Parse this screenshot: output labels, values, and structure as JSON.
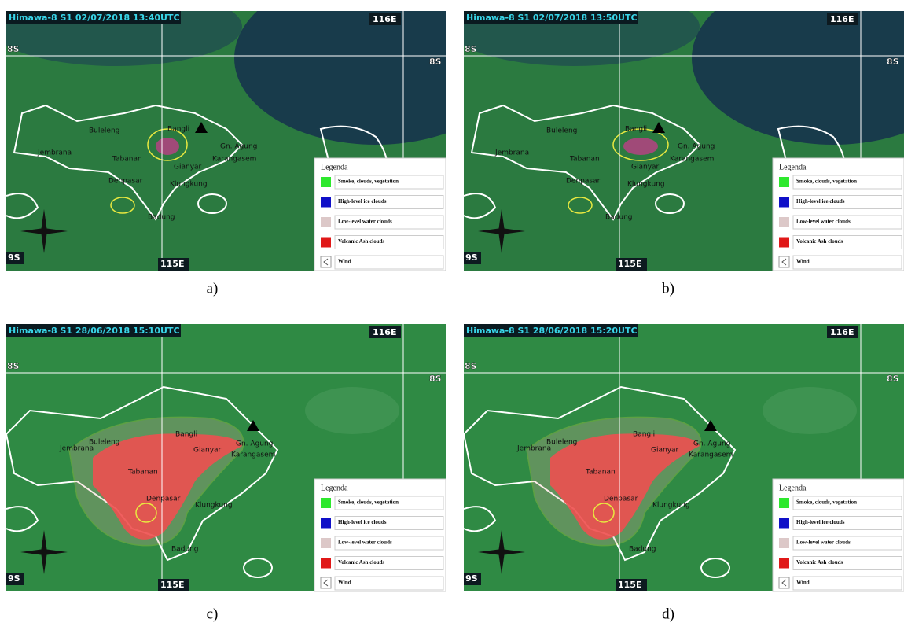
{
  "panels": [
    {
      "header": "Himawa-8 S1 02/07/2018 13:40UTC",
      "caption": "a)"
    },
    {
      "header": "Himawa-8 S1 02/07/2018 13:50UTC",
      "caption": "b)"
    },
    {
      "header": "Himawa-8 S1 28/06/2018 15:10UTC",
      "caption": "c)"
    },
    {
      "header": "Himawa-8 S1 28/06/2018 15:20UTC",
      "caption": "d)"
    }
  ],
  "grid_labels": {
    "lon_east": "116E",
    "lon_west": "115E",
    "lat_north": "8S",
    "lat_south": "9S"
  },
  "places": [
    "Buleleng",
    "Bangli",
    "Jembrana",
    "Tabanan",
    "Gianyar",
    "Gn. Agung",
    "Karangasem",
    "Denpasar",
    "Klungkung",
    "Badung"
  ],
  "legend": {
    "title": "Legenda",
    "items": [
      {
        "label": "Smoke, clouds, vegetation",
        "color": "#2ee82e"
      },
      {
        "label": "High-level ice clouds",
        "color": "#1010c8"
      },
      {
        "label": "Low-level water clouds",
        "color": "#dcc8c8"
      },
      {
        "label": "Volcanic Ash clouds",
        "color": "#e01818"
      },
      {
        "label": "Wind"
      }
    ]
  }
}
